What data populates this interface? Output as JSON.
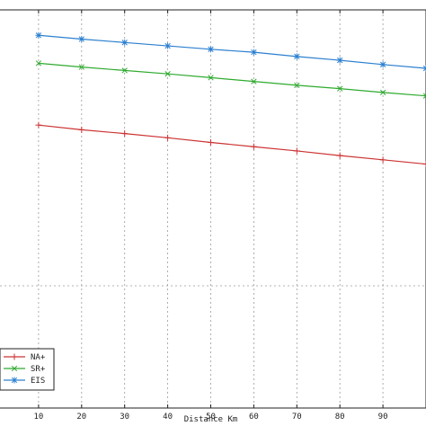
{
  "chart_data": {
    "type": "line",
    "title": "",
    "xlabel": "Distance Km",
    "ylabel": "",
    "x": [
      10,
      20,
      30,
      40,
      50,
      60,
      70,
      80,
      90,
      100
    ],
    "xticks": [
      "10",
      "20",
      "30",
      "40",
      "50",
      "60",
      "70",
      "80",
      "90"
    ],
    "xlim": [
      0,
      100
    ],
    "grid": true,
    "legend_position": "bottom-left",
    "series": [
      {
        "name": "NA+",
        "color": "#cc3333",
        "marker": "plus",
        "values": [
          0.668,
          0.657,
          0.648,
          0.638,
          0.627,
          0.617,
          0.607,
          0.596,
          0.586,
          0.576
        ]
      },
      {
        "name": "SR+",
        "color": "#2eaa2e",
        "marker": "x",
        "values": [
          0.814,
          0.805,
          0.797,
          0.789,
          0.78,
          0.771,
          0.762,
          0.754,
          0.745,
          0.737
        ]
      },
      {
        "name": "EIS",
        "color": "#2b7fd0",
        "marker": "star",
        "values": [
          0.88,
          0.871,
          0.863,
          0.855,
          0.847,
          0.84,
          0.83,
          0.821,
          0.811,
          0.802
        ]
      }
    ]
  }
}
